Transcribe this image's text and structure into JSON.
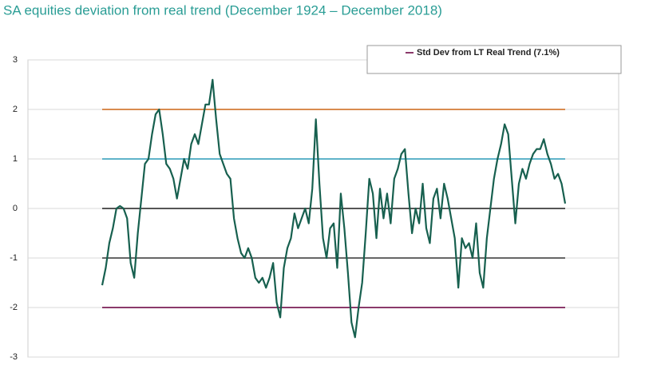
{
  "chart_data": {
    "type": "line",
    "title": "SA equities deviation from  real trend (December 1924 – December 2018)",
    "ylim": [
      -3,
      3
    ],
    "yticks": [
      -3,
      -2,
      -1,
      0,
      1,
      2,
      3
    ],
    "grid": true,
    "reference_lines": [
      {
        "value": 2,
        "color": "#d98b4f"
      },
      {
        "value": 1,
        "color": "#5fb3c9"
      },
      {
        "value": 0,
        "color": "#555555"
      },
      {
        "value": -1,
        "color": "#666666"
      },
      {
        "value": -2,
        "color": "#8b3a6b"
      }
    ],
    "legend_marker_color": "#8b3a6b",
    "series": [
      {
        "name": "Std Dev from LT Real Trend (7.1%)",
        "color": "#17604f",
        "values": [
          -1.55,
          -1.2,
          -0.7,
          -0.4,
          0.0,
          0.05,
          0.0,
          -0.2,
          -1.1,
          -1.4,
          -0.5,
          0.2,
          0.9,
          1.0,
          1.5,
          1.9,
          2.0,
          1.5,
          0.9,
          0.8,
          0.6,
          0.2,
          0.6,
          1.0,
          0.8,
          1.3,
          1.5,
          1.3,
          1.7,
          2.1,
          2.1,
          2.6,
          1.8,
          1.1,
          0.9,
          0.7,
          0.6,
          -0.2,
          -0.6,
          -0.9,
          -1.0,
          -0.8,
          -1.0,
          -1.4,
          -1.5,
          -1.4,
          -1.6,
          -1.4,
          -1.1,
          -1.9,
          -2.2,
          -1.2,
          -0.8,
          -0.6,
          -0.1,
          -0.4,
          -0.2,
          0.0,
          -0.3,
          0.4,
          1.8,
          0.5,
          -0.6,
          -1.0,
          -0.4,
          -0.3,
          -1.2,
          0.3,
          -0.4,
          -1.3,
          -2.3,
          -2.6,
          -2.0,
          -1.5,
          -0.5,
          0.6,
          0.3,
          -0.6,
          0.4,
          -0.2,
          0.3,
          -0.3,
          0.6,
          0.8,
          1.1,
          1.2,
          0.3,
          -0.5,
          0.0,
          -0.3,
          0.5,
          -0.4,
          -0.7,
          0.2,
          0.4,
          -0.2,
          0.5,
          0.2,
          -0.2,
          -0.6,
          -1.6,
          -0.6,
          -0.8,
          -0.7,
          -1.0,
          -0.3,
          -1.3,
          -1.6,
          -0.6,
          0.0,
          0.6,
          1.0,
          1.3,
          1.7,
          1.5,
          0.6,
          -0.3,
          0.5,
          0.8,
          0.6,
          0.9,
          1.1,
          1.2,
          1.2,
          1.4,
          1.1,
          0.9,
          0.6,
          0.7,
          0.5,
          0.1
        ]
      }
    ]
  }
}
